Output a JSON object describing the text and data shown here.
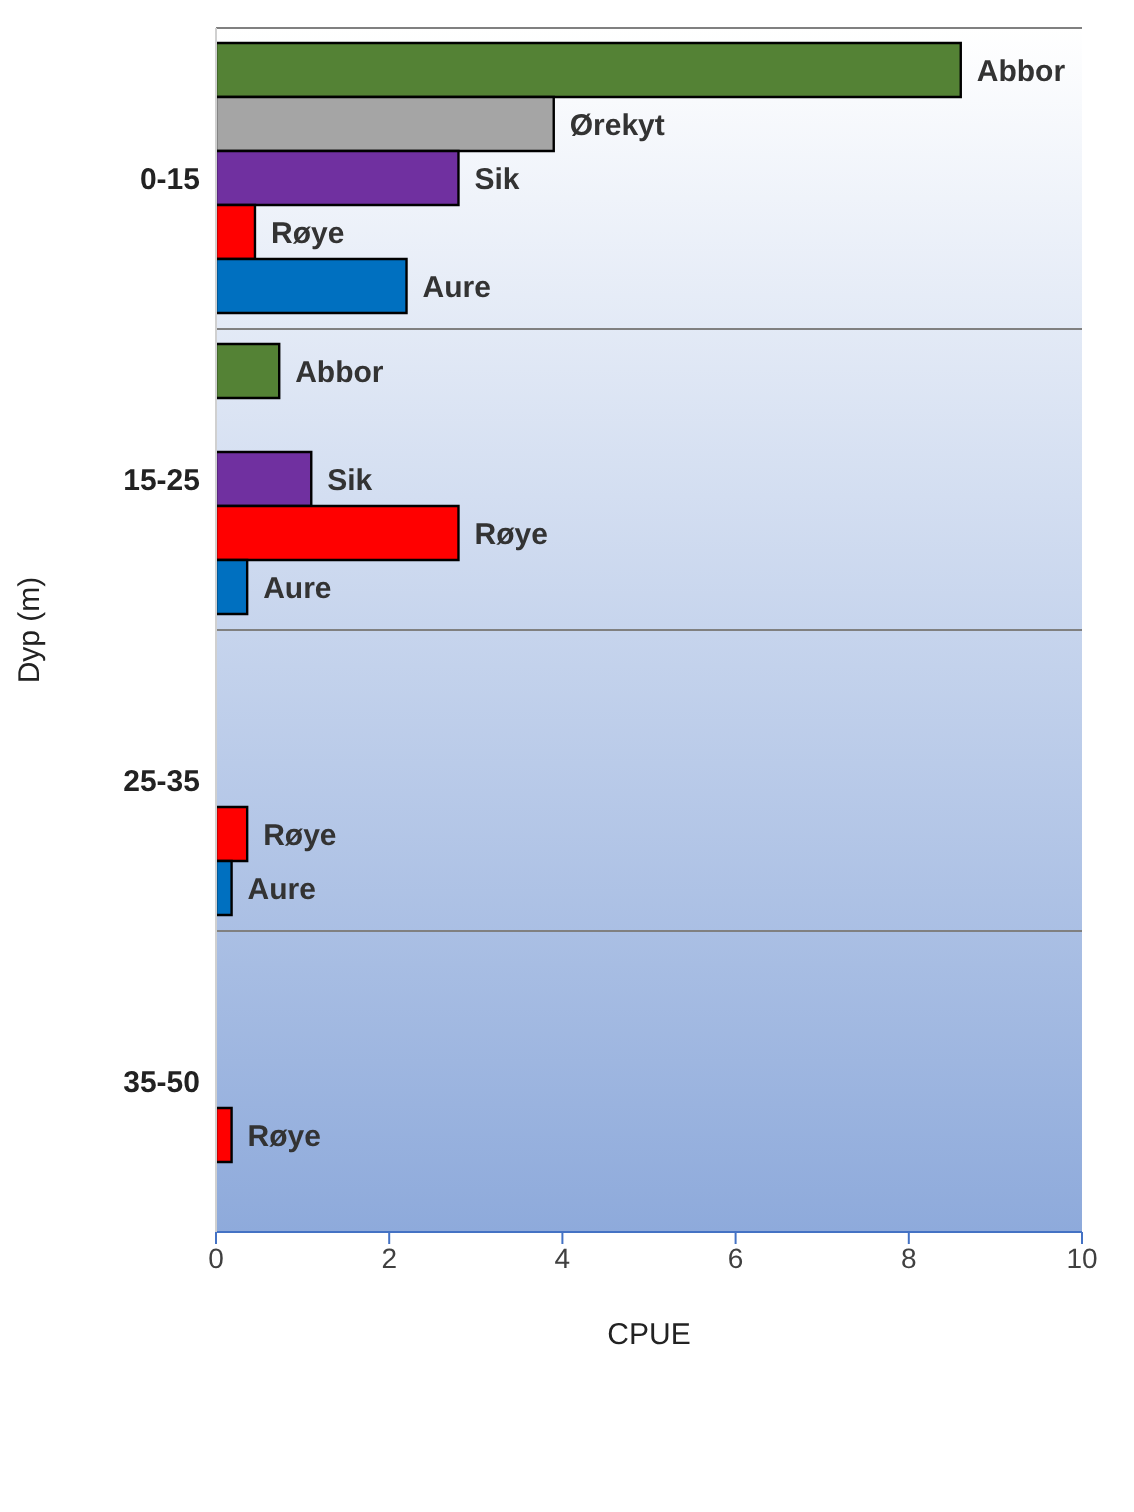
{
  "chart_data": {
    "type": "bar",
    "orientation": "horizontal",
    "xlabel": "CPUE",
    "ylabel": "Dyp (m)",
    "categories": [
      "0-15",
      "15-25",
      "25-35",
      "35-50"
    ],
    "series": [
      {
        "name": "Abbor",
        "color": "#548235",
        "values": [
          8.6,
          0.73,
          null,
          null
        ]
      },
      {
        "name": "Ørekyt",
        "color": "#a5a5a5",
        "values": [
          3.9,
          null,
          null,
          null
        ]
      },
      {
        "name": "Sik",
        "color": "#7030a0",
        "values": [
          2.8,
          1.1,
          null,
          null
        ]
      },
      {
        "name": "Røye",
        "color": "#ff0000",
        "values": [
          0.45,
          2.8,
          0.36,
          0.18
        ]
      },
      {
        "name": "Aure",
        "color": "#0070c0",
        "values": [
          2.2,
          0.36,
          0.18,
          null
        ]
      }
    ],
    "xlim": [
      0,
      10
    ],
    "xticks": [
      0,
      2,
      4,
      6,
      8,
      10
    ],
    "grid": "y",
    "legend": false
  }
}
